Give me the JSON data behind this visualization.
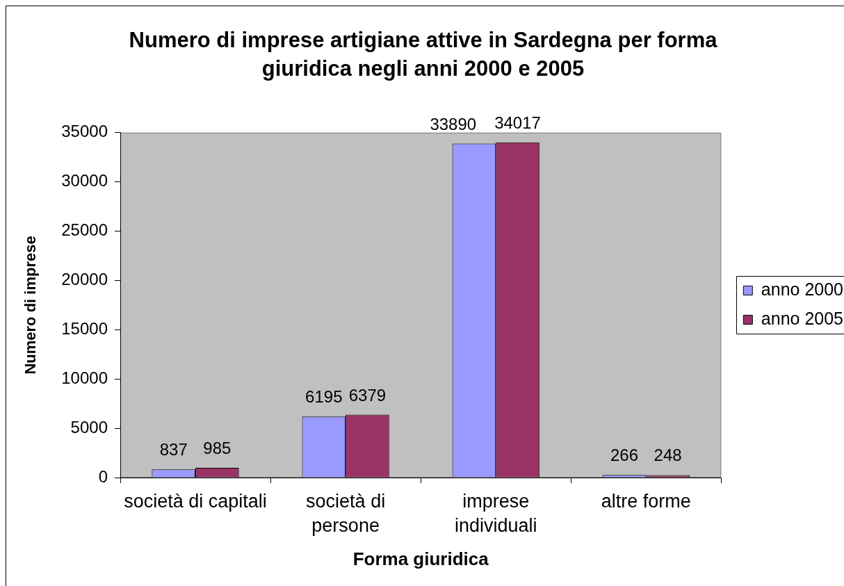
{
  "chart_data": {
    "type": "bar",
    "title": "Numero di imprese artigiane attive in Sardegna per forma giuridica negli anni 2000 e 2005",
    "xlabel": "Forma giuridica",
    "ylabel": "Numero di imprese",
    "categories": [
      "società di capitali",
      "società di persone",
      "imprese individuali",
      "altre forme"
    ],
    "series": [
      {
        "name": "anno 2000",
        "color": "#9999ff",
        "values": [
          837,
          6195,
          33890,
          266
        ]
      },
      {
        "name": "anno 2005",
        "color": "#993366",
        "values": [
          985,
          6379,
          34017,
          248
        ]
      }
    ],
    "ylim": [
      0,
      35000
    ],
    "yticks": [
      0,
      5000,
      10000,
      15000,
      20000,
      25000,
      30000,
      35000
    ],
    "legend": "right",
    "data_labels": true
  }
}
